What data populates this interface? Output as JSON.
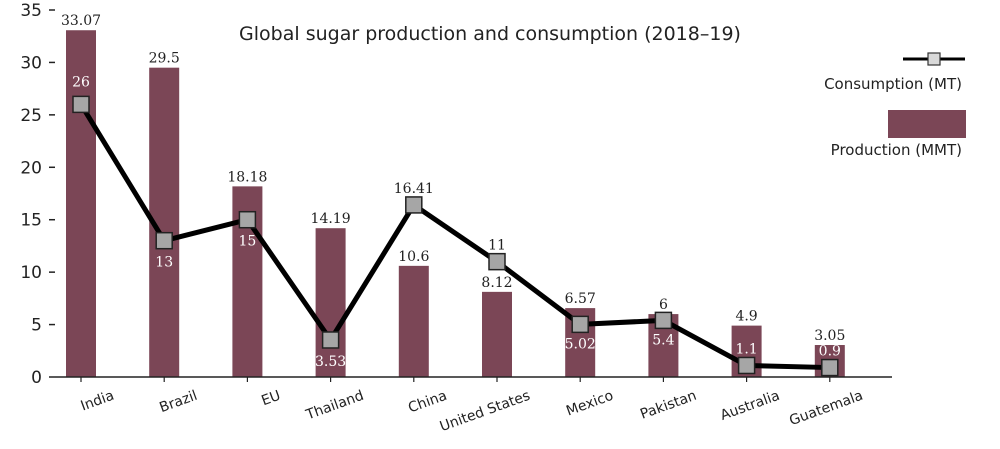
{
  "chart_data": {
    "type": "bar",
    "title": "Global sugar production and consumption (2018–19)",
    "categories": [
      "India",
      "Brazil",
      "EU",
      "Thailand",
      "China",
      "United States",
      "Mexico",
      "Pakistan",
      "Australia",
      "Guatemala"
    ],
    "ylim": [
      0,
      35
    ],
    "yticks": [
      0,
      5,
      10,
      15,
      20,
      25,
      30,
      35
    ],
    "series": [
      {
        "name": "Production (MMT)",
        "type": "bar",
        "color": "#7b4656",
        "values": [
          33.07,
          29.5,
          18.18,
          14.19,
          10.6,
          8.12,
          6.57,
          6,
          4.9,
          3.05
        ],
        "labels": [
          "33.07",
          "29.5",
          "18.18",
          "14.19",
          "10.6",
          "8.12",
          "6.57",
          "6",
          "4.9",
          "3.05"
        ]
      },
      {
        "name": "Consumption (MT)",
        "type": "line",
        "color": "#000000",
        "marker_color": "#a6a6a6",
        "values": [
          26,
          13,
          15,
          3.53,
          16.41,
          11,
          5.02,
          5.4,
          1.1,
          0.9
        ],
        "labels": [
          "26",
          "13",
          "15",
          "3.53",
          "16.41",
          "11",
          "5.02",
          "5.4",
          "1.1",
          "0.9"
        ]
      }
    ],
    "legend_position": "top-right",
    "grid": false
  }
}
